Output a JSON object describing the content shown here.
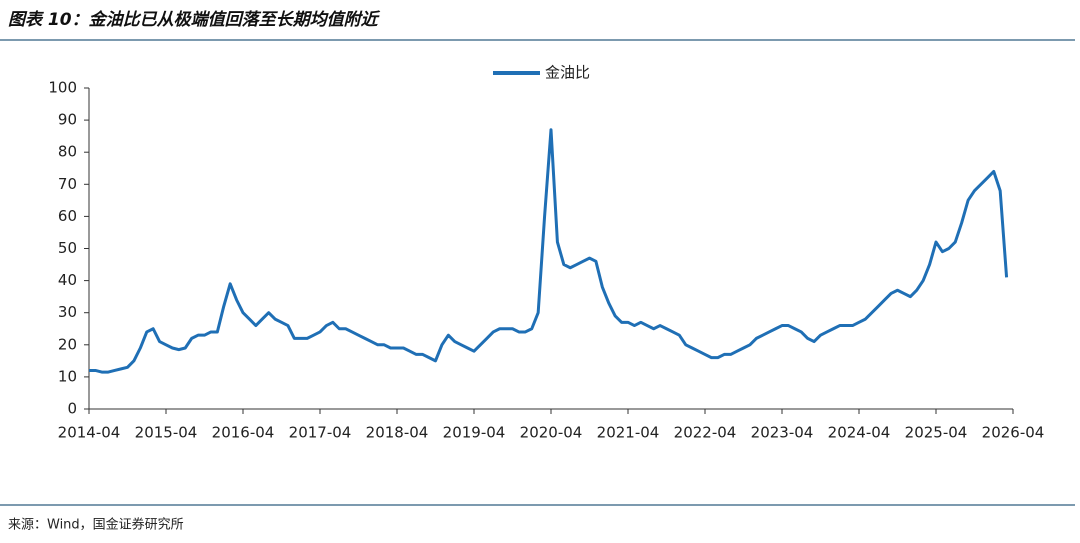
{
  "chart_data": {
    "type": "line",
    "title": "图表 10：金油比已从极端值回落至长期均值附近",
    "source": "来源：Wind，国金证券研究所",
    "legend": "top",
    "x": [
      "2014-04",
      "2014-05",
      "2014-06",
      "2014-07",
      "2014-08",
      "2014-09",
      "2014-10",
      "2014-11",
      "2014-12",
      "2015-01",
      "2015-02",
      "2015-03",
      "2015-04",
      "2015-05",
      "2015-06",
      "2015-07",
      "2015-08",
      "2015-09",
      "2015-10",
      "2015-11",
      "2015-12",
      "2016-01",
      "2016-02",
      "2016-03",
      "2016-04",
      "2016-05",
      "2016-06",
      "2016-07",
      "2016-08",
      "2016-09",
      "2016-10",
      "2016-11",
      "2016-12",
      "2017-01",
      "2017-02",
      "2017-03",
      "2017-04",
      "2017-05",
      "2017-06",
      "2017-07",
      "2017-08",
      "2017-09",
      "2017-10",
      "2017-11",
      "2017-12",
      "2018-01",
      "2018-02",
      "2018-03",
      "2018-04",
      "2018-05",
      "2018-06",
      "2018-07",
      "2018-08",
      "2018-09",
      "2018-10",
      "2018-11",
      "2018-12",
      "2019-01",
      "2019-02",
      "2019-03",
      "2019-04",
      "2019-05",
      "2019-06",
      "2019-07",
      "2019-08",
      "2019-09",
      "2019-10",
      "2019-11",
      "2019-12",
      "2020-01",
      "2020-02",
      "2020-03",
      "2020-04",
      "2020-05",
      "2020-06",
      "2020-07",
      "2020-08",
      "2020-09",
      "2020-10",
      "2020-11",
      "2020-12",
      "2021-01",
      "2021-02",
      "2021-03",
      "2021-04",
      "2021-05",
      "2021-06",
      "2021-07",
      "2021-08",
      "2021-09",
      "2021-10",
      "2021-11",
      "2021-12",
      "2022-01",
      "2022-02",
      "2022-03",
      "2022-04",
      "2022-05",
      "2022-06",
      "2022-07",
      "2022-08",
      "2022-09",
      "2022-10",
      "2022-11",
      "2022-12",
      "2023-01",
      "2023-02",
      "2023-03",
      "2023-04",
      "2023-05",
      "2023-06",
      "2023-07",
      "2023-08",
      "2023-09",
      "2023-10",
      "2023-11",
      "2023-12",
      "2024-01",
      "2024-02",
      "2024-03",
      "2024-04",
      "2024-05",
      "2024-06",
      "2024-07",
      "2024-08",
      "2024-09",
      "2024-10",
      "2024-11",
      "2024-12",
      "2025-01",
      "2025-02",
      "2025-03",
      "2025-04",
      "2025-05",
      "2025-06",
      "2025-07",
      "2025-08",
      "2025-09",
      "2025-10",
      "2025-11",
      "2025-12",
      "2026-01",
      "2026-02",
      "2026-03"
    ],
    "series": [
      {
        "name": "金油比",
        "color": "#1f6fb5",
        "values": [
          12,
          12,
          11.5,
          11.5,
          12,
          12.5,
          13,
          15,
          19,
          24,
          25,
          21,
          20,
          19,
          18.5,
          19,
          22,
          23,
          23,
          24,
          24,
          32,
          39,
          34,
          30,
          28,
          26,
          28,
          30,
          28,
          27,
          26,
          22,
          22,
          22,
          23,
          24,
          26,
          27,
          25,
          25,
          24,
          23,
          22,
          21,
          20,
          20,
          19,
          19,
          19,
          18,
          17,
          17,
          16,
          15,
          20,
          23,
          21,
          20,
          19,
          18,
          20,
          22,
          24,
          25,
          25,
          25,
          24,
          24,
          25,
          30,
          60,
          87,
          52,
          45,
          44,
          45,
          46,
          47,
          46,
          38,
          33,
          29,
          27,
          27,
          26,
          27,
          26,
          25,
          26,
          25,
          24,
          23,
          20,
          19,
          18,
          17,
          16,
          16,
          17,
          17,
          18,
          19,
          20,
          22,
          23,
          24,
          25,
          26,
          26,
          25,
          24,
          22,
          21,
          23,
          24,
          25,
          26,
          26,
          26,
          27,
          28,
          30,
          32,
          34,
          36,
          37,
          36,
          35,
          37,
          40,
          45,
          52,
          49,
          50,
          52,
          58,
          65,
          68,
          70,
          72,
          74,
          68,
          41
        ]
      }
    ],
    "xlim": [
      "2014-04",
      "2026-04"
    ],
    "xticks": [
      "2014-04",
      "2015-04",
      "2016-04",
      "2017-04",
      "2018-04",
      "2019-04",
      "2020-04",
      "2021-04",
      "2022-04",
      "2023-04",
      "2024-04",
      "2025-04",
      "2026-04"
    ],
    "ylim": [
      0,
      100
    ],
    "yticks": [
      0,
      10,
      20,
      30,
      40,
      50,
      60,
      70,
      80,
      90,
      100
    ]
  }
}
